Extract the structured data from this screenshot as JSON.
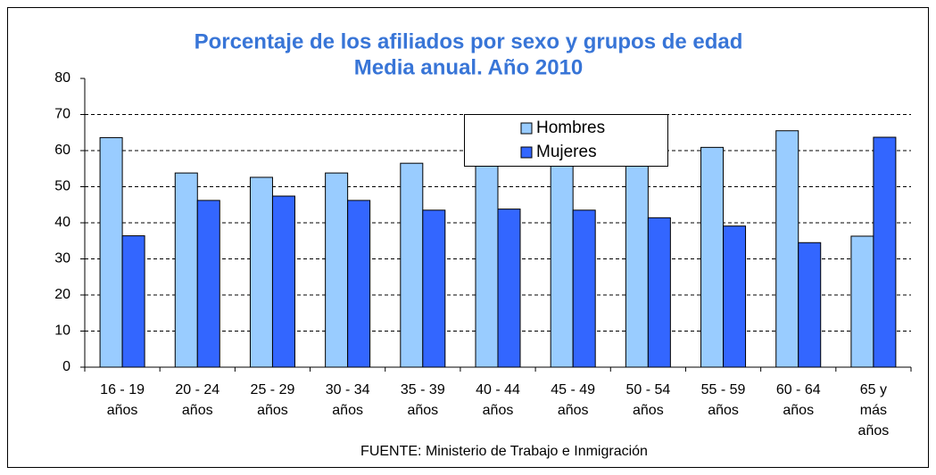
{
  "chart_data": {
    "type": "bar",
    "title": [
      "Porcentaje de los afiliados por sexo y grupos de edad",
      "Media anual. Año 2010"
    ],
    "categories": [
      [
        "16 - 19",
        "años"
      ],
      [
        "20 - 24",
        "años"
      ],
      [
        "25 - 29",
        "años"
      ],
      [
        "30 - 34",
        "años"
      ],
      [
        "35 - 39",
        "años"
      ],
      [
        "40 - 44",
        "años"
      ],
      [
        "45 - 49",
        "años"
      ],
      [
        "50 - 54",
        "años"
      ],
      [
        "55 - 59",
        "años"
      ],
      [
        "60 - 64",
        "años"
      ],
      [
        "65 y",
        "más",
        "años"
      ]
    ],
    "series": [
      {
        "name": "Hombres",
        "color": "#99ccff",
        "values": [
          63.6,
          53.8,
          52.6,
          53.8,
          56.5,
          56.2,
          56.5,
          58.6,
          60.9,
          65.5,
          36.3
        ]
      },
      {
        "name": "Mujeres",
        "color": "#3366ff",
        "values": [
          36.4,
          46.2,
          47.4,
          46.2,
          43.5,
          43.8,
          43.5,
          41.4,
          39.1,
          34.5,
          63.7
        ]
      }
    ],
    "ylim": [
      0,
      80
    ],
    "yticks": [
      0,
      10,
      20,
      30,
      40,
      50,
      60,
      70,
      80
    ],
    "grid": true,
    "legend": "top",
    "source": "FUENTE: Ministerio de Trabajo e Inmigración"
  }
}
